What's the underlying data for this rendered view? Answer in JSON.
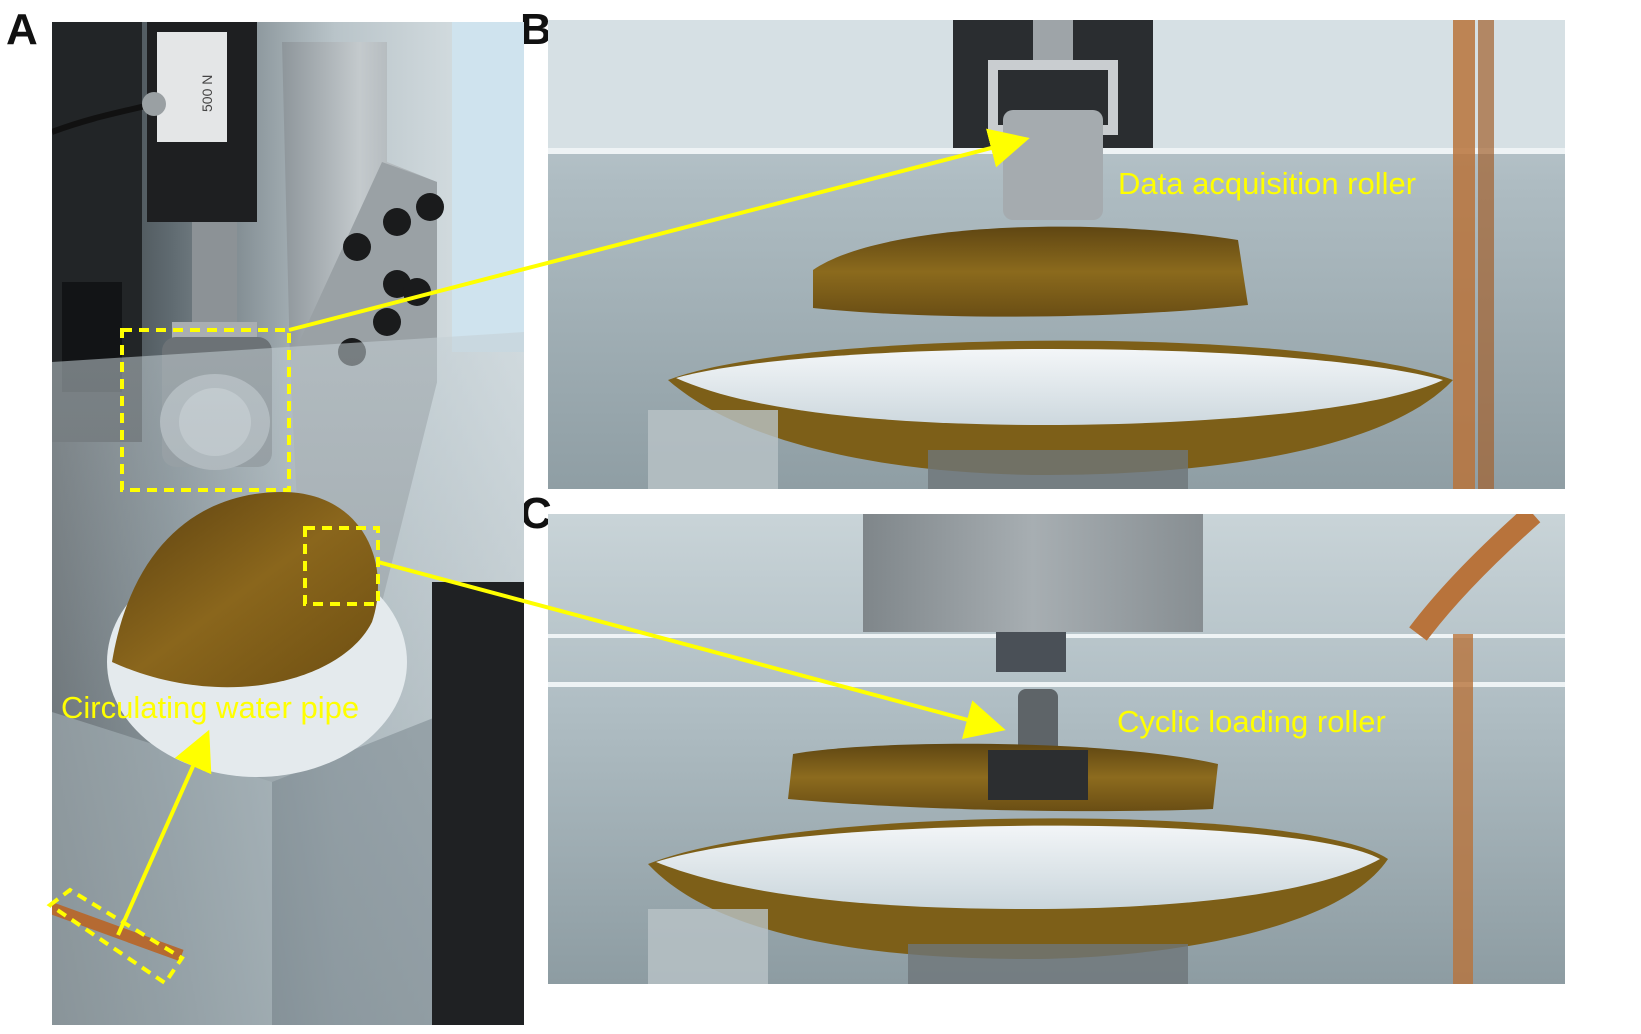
{
  "panels": [
    {
      "letter": "A"
    },
    {
      "letter": "B"
    },
    {
      "letter": "C"
    }
  ],
  "photo_a": {
    "load_cell_label": "500 N"
  },
  "callouts": {
    "circulating_water_pipe": "Circulating water pipe",
    "data_acquisition_roller": "Data acquisition roller",
    "cyclic_loading_roller": "Cyclic loading roller"
  },
  "colors": {
    "annotation": "#ffff00",
    "shell_brown": "#7a5a14",
    "nacre": "#e8eef2",
    "water_tank": "#c9d6dc"
  }
}
